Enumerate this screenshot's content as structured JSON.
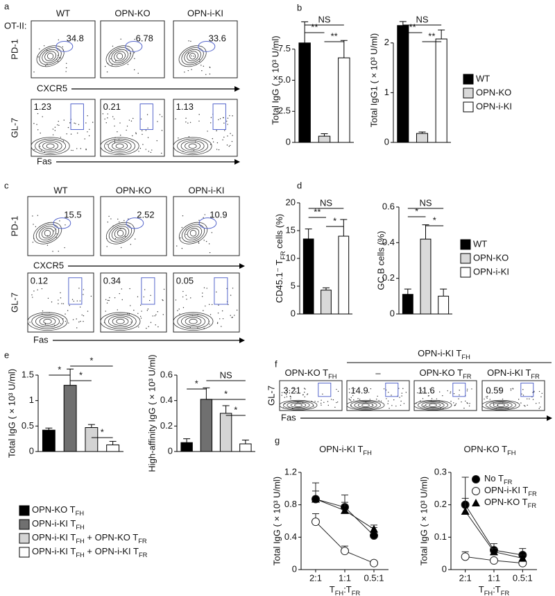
{
  "panel_letters": [
    "a",
    "b",
    "c",
    "d",
    "e",
    "f",
    "g"
  ],
  "flow_panels": {
    "a": {
      "row_label": "OT-II:",
      "columns": [
        "WT",
        "OPN-KO",
        "OPN-i-KI"
      ],
      "top": {
        "y_label": "PD-1",
        "x_label": "CXCR5",
        "values": [
          34.8,
          6.78,
          33.6
        ]
      },
      "bottom": {
        "y_label": "GL-7",
        "x_label": "Fas",
        "values": [
          1.23,
          0.21,
          1.13
        ]
      }
    },
    "c": {
      "columns": [
        "WT",
        "OPN-KO",
        "OPN-i-KI"
      ],
      "top": {
        "y_label": "PD-1",
        "x_label": "CXCR5",
        "values": [
          15.5,
          2.52,
          10.9
        ]
      },
      "bottom": {
        "y_label": "GL-7",
        "x_label": "Fas",
        "values": [
          0.12,
          0.34,
          0.05
        ]
      }
    },
    "f": {
      "group_label": [
        "OPN-i-KI T",
        "FH"
      ],
      "columns": [
        [
          "OPN-KO T",
          "FH"
        ],
        "–",
        [
          "OPN-KO T",
          "FR"
        ],
        [
          "OPN-i-KI T",
          "FR"
        ]
      ],
      "y_label": "GL-7",
      "x_label": "Fas",
      "values": [
        3.21,
        14.9,
        11.6,
        0.59
      ]
    }
  },
  "chart_data": [
    {
      "type": "bar",
      "y_label": "Total IgG ( × 10³ U/ml)",
      "values": [
        8.0,
        0.5,
        6.8
      ],
      "errors": [
        1.7,
        0.2,
        1.4
      ],
      "ylim": [
        0,
        10
      ],
      "yticks": [
        0,
        2.5,
        {
          "value": 5,
          "label": "5.0"
        },
        7.5
      ],
      "significance": [
        "NS",
        "**",
        "**"
      ],
      "legend": {
        "names": [
          "WT",
          "OPN-KO",
          "OPN-i-KI"
        ],
        "colors": [
          "#000000",
          "#d9d9d9",
          "#ffffff"
        ]
      }
    },
    {
      "type": "bar",
      "y_label": "Total IgG1 ( × 10³ U/ml)",
      "values": [
        2.35,
        0.18,
        2.08
      ],
      "errors": [
        0.08,
        0.03,
        0.18
      ],
      "ylim": [
        0,
        2.5
      ],
      "yticks": [
        0,
        1,
        2
      ],
      "significance": [
        "NS",
        "**",
        "**"
      ]
    },
    {
      "type": "bar",
      "y_label": [
        "CD45.1⁻ T",
        "FR",
        " cells (%)"
      ],
      "values": [
        13.5,
        4.3,
        14.0
      ],
      "errors": [
        1.8,
        0.4,
        3.0
      ],
      "ylim": [
        0,
        20
      ],
      "yticks": [
        0,
        5,
        10,
        15,
        20
      ],
      "significance": [
        "NS",
        "**",
        "*"
      ],
      "legend": {
        "names": [
          "WT",
          "OPN-KO",
          "OPN-i-KI"
        ],
        "colors": [
          "#000000",
          "#d9d9d9",
          "#ffffff"
        ]
      }
    },
    {
      "type": "bar",
      "y_label": "GC B cells (%)",
      "values": [
        0.11,
        0.42,
        0.1
      ],
      "errors": [
        0.03,
        0.08,
        0.04
      ],
      "ylim": [
        0,
        0.6
      ],
      "yticks": [
        0,
        0.2,
        0.4,
        0.6
      ],
      "significance": [
        "NS",
        "*",
        "*"
      ]
    },
    {
      "type": "bar",
      "y_label": "Total IgG ( × 10³ U/ml)",
      "values": [
        0.42,
        1.3,
        0.47,
        0.13
      ],
      "errors": [
        0.04,
        0.32,
        0.06,
        0.07
      ],
      "ylim": [
        0,
        1.5
      ],
      "yticks": [
        0,
        0.5,
        1,
        1.5
      ],
      "significance": [
        "*",
        "*",
        "*",
        "*"
      ],
      "legend": {
        "names": [
          [
            "OPN-KO T",
            "FH"
          ],
          [
            "OPN-i-KI T",
            "FH"
          ],
          [
            "OPN-i-KI T",
            "FH",
            " + OPN-KO T",
            "FR"
          ],
          [
            "OPN-i-KI T",
            "FH",
            " + OPN-i-KI T",
            "FR"
          ]
        ],
        "colors": [
          "#000000",
          "#707070",
          "#d4d4d4",
          "#ffffff"
        ]
      }
    },
    {
      "type": "bar",
      "y_label": "High-affinity IgG ( × 10³ U/ml)",
      "values": [
        0.07,
        0.41,
        0.3,
        0.06
      ],
      "errors": [
        0.03,
        0.09,
        0.06,
        0.03
      ],
      "ylim": [
        0,
        0.6
      ],
      "yticks": [
        0,
        0.2,
        0.4,
        0.6
      ],
      "significance": [
        "NS",
        "*",
        "*",
        "*"
      ]
    },
    {
      "type": "line",
      "title": [
        "OPN-i-KI T",
        "FH"
      ],
      "y_label": "Total IgG ( × 10³ U/ml)",
      "x_label": [
        "T",
        "FH",
        ":T",
        "FR"
      ],
      "categories": [
        "2:1",
        "1:1",
        "0.5:1"
      ],
      "ylim": [
        0,
        1.2
      ],
      "yticks": [
        0,
        0.4,
        0.8,
        1.2
      ],
      "series": [
        {
          "marker": "filled-circle",
          "values": [
            0.87,
            0.77,
            0.42
          ],
          "errors": [
            0.2,
            0.15,
            0.1
          ]
        },
        {
          "marker": "open-circle",
          "values": [
            0.59,
            0.23,
            0.08
          ],
          "errors": [
            0.1,
            0.06,
            0.02
          ]
        },
        {
          "marker": "triangle",
          "values": [
            0.87,
            0.73,
            0.5
          ],
          "errors": [
            0.1,
            0.1,
            0.05
          ]
        }
      ]
    },
    {
      "type": "line",
      "title": [
        "OPN-KO T",
        "FH"
      ],
      "y_label": "Total IgG ( × 10³ U/ml)",
      "x_label": [
        "T",
        "FH",
        ":T",
        "FR"
      ],
      "categories": [
        "2:1",
        "1:1",
        "0.5:1"
      ],
      "ylim": [
        0,
        0.3
      ],
      "yticks": [
        0,
        0.1,
        0.2,
        0.3
      ],
      "series": [
        {
          "name": [
            "No T",
            "FR"
          ],
          "marker": "filled-circle",
          "values": [
            0.2,
            0.06,
            0.045
          ],
          "errors": [
            0.085,
            0.02,
            0.02
          ]
        },
        {
          "name": [
            "OPN-i-KI T",
            "FR"
          ],
          "marker": "open-circle",
          "values": [
            0.04,
            0.028,
            0.02
          ],
          "errors": [
            0.015,
            0.006,
            0.005
          ]
        },
        {
          "name": [
            "OPN-KO T",
            "FR"
          ],
          "marker": "triangle",
          "values": [
            0.18,
            0.055,
            0.035
          ],
          "errors": [
            0.04,
            0.01,
            0.01
          ]
        }
      ]
    }
  ]
}
